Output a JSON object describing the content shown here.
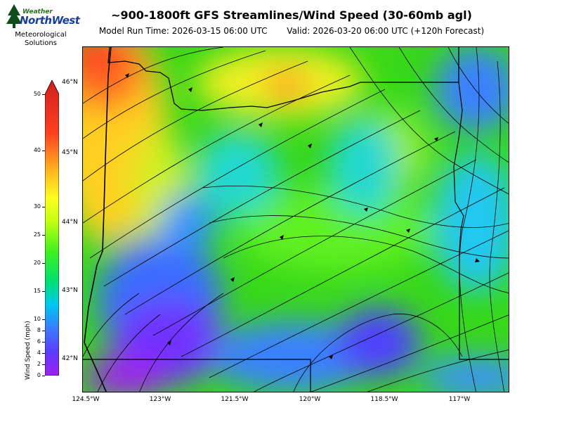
{
  "logo": {
    "brand_line1": "Weather",
    "brand_line2": "NorthWest",
    "org_line1": "Meteorological",
    "org_line2": "Solutions"
  },
  "header": {
    "title": "~900-1800ft GFS Streamlines/Wind Speed (30-60mb agl)",
    "model_run": "Model Run Time: 2026-03-15 06:00 UTC",
    "valid": "Valid: 2026-03-20 06:00 UTC  (+120h Forecast)"
  },
  "colorbar": {
    "label": "Wind Speed (mph)",
    "ticks": [
      "0",
      "2",
      "4",
      "6",
      "8",
      "10",
      "15",
      "20",
      "25",
      "30",
      "40",
      "50"
    ]
  },
  "axes": {
    "lat_labels": [
      "46°N",
      "45°N",
      "44°N",
      "43°N",
      "42°N"
    ],
    "lon_labels": [
      "124.5°W",
      "123°W",
      "121.5°W",
      "120°W",
      "118.5°W",
      "117°W"
    ]
  }
}
